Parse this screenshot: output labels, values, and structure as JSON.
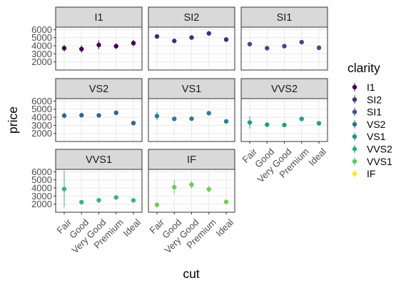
{
  "chart_data": {
    "type": "scatter",
    "subtype": "faceted point-range",
    "facet_by": "clarity",
    "facet_layout": {
      "ncol": 3
    },
    "xlabel": "cut",
    "ylabel": "price",
    "x_categories": [
      "Fair",
      "Good",
      "Very Good",
      "Premium",
      "Ideal"
    ],
    "y_ticks": [
      2000,
      3000,
      4000,
      5000,
      6000
    ],
    "ylim": [
      1000,
      6300
    ],
    "grid": true,
    "legend": {
      "title": "clarity",
      "position": "right"
    },
    "theme": {
      "strip_fill": "#d9d9d9",
      "panel_border": "#333333",
      "grid_color": "#ebebeb"
    },
    "panels": [
      {
        "label": "I1",
        "color": "#440154",
        "mean": [
          3700,
          3600,
          4100,
          3950,
          4330
        ],
        "low": [
          3300,
          3150,
          3600,
          3600,
          3950
        ],
        "high": [
          4100,
          4050,
          4650,
          4300,
          4720
        ]
      },
      {
        "label": "SI2",
        "color": "#482878",
        "mean": [
          5150,
          4600,
          5020,
          5530,
          4770
        ],
        "low": [
          4900,
          4500,
          4880,
          5380,
          4680
        ],
        "high": [
          5400,
          4700,
          5160,
          5680,
          4860
        ]
      },
      {
        "label": "SI1",
        "color": "#3E4A89",
        "mean": [
          4200,
          3700,
          3950,
          4450,
          3750
        ],
        "low": [
          4100,
          3620,
          3880,
          4380,
          3700
        ],
        "high": [
          4300,
          3780,
          4020,
          4520,
          3800
        ]
      },
      {
        "label": "VS2",
        "color": "#31688E",
        "mean": [
          4200,
          4250,
          4220,
          4550,
          3280
        ],
        "low": [
          3850,
          4100,
          4100,
          4450,
          3200
        ],
        "high": [
          4550,
          4400,
          4340,
          4650,
          3360
        ]
      },
      {
        "label": "VS1",
        "color": "#26828E",
        "mean": [
          4150,
          3800,
          3820,
          4500,
          3480
        ],
        "low": [
          3650,
          3650,
          3700,
          4380,
          3400
        ],
        "high": [
          4650,
          3950,
          3940,
          4620,
          3560
        ]
      },
      {
        "label": "VVS2",
        "color": "#1F9E89",
        "mean": [
          3350,
          3080,
          3040,
          3800,
          3250
        ],
        "low": [
          2600,
          2800,
          2900,
          3600,
          3150
        ],
        "high": [
          4100,
          3360,
          3180,
          4000,
          3350
        ]
      },
      {
        "label": "VVS1",
        "color": "#35B779",
        "mean": [
          3870,
          2250,
          2480,
          2830,
          2470
        ],
        "low": [
          1650,
          2050,
          2350,
          2650,
          2380
        ],
        "high": [
          6100,
          2450,
          2610,
          3010,
          2560
        ]
      },
      {
        "label": "IF",
        "color": "#6DCD59",
        "mean": [
          1920,
          4100,
          4400,
          3850,
          2280
        ],
        "low": [
          1600,
          3200,
          3950,
          3450,
          2150
        ],
        "high": [
          2250,
          5000,
          4850,
          4250,
          2410
        ]
      }
    ],
    "legend_items": [
      {
        "label": "I1",
        "color": "#440154"
      },
      {
        "label": "SI2",
        "color": "#472D7B"
      },
      {
        "label": "SI1",
        "color": "#3B528B"
      },
      {
        "label": "VS2",
        "color": "#2C728E"
      },
      {
        "label": "VS1",
        "color": "#21908C"
      },
      {
        "label": "VVS2",
        "color": "#27AD81"
      },
      {
        "label": "VVS1",
        "color": "#5DC863"
      },
      {
        "label": "IF",
        "color": "#FDE725"
      }
    ]
  }
}
